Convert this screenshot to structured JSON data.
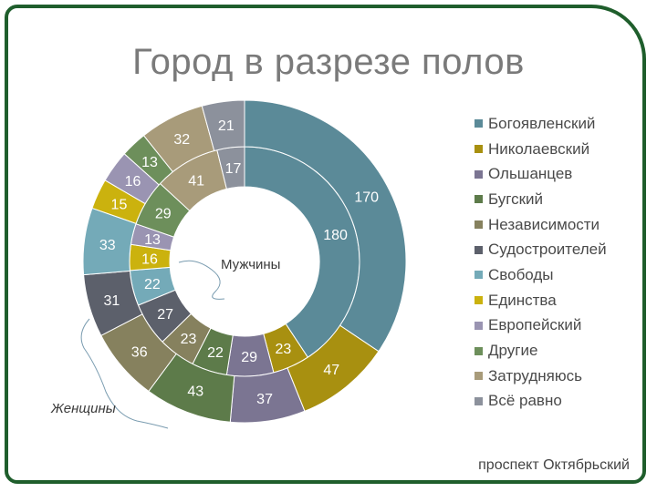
{
  "title": "Город в разрезе полов",
  "footer": "проспект Октябрьский",
  "annotations": {
    "men": "Мужчины",
    "women": "Женщины"
  },
  "chart_data": {
    "type": "pie",
    "subtype": "doughnut",
    "title": "Город в разрезе полов",
    "legend_position": "right",
    "categories": [
      "Богоявленский",
      "Николаевский",
      "Ольшанцев",
      "Бугский",
      "Независимости",
      "Судостроителей",
      "Свободы",
      "Единства",
      "Европейский",
      "Другие",
      "Затрудняюсь",
      "Всё равно"
    ],
    "colors": [
      "#5b8a98",
      "#a89010",
      "#7b7592",
      "#5d7b4a",
      "#86815e",
      "#5c606b",
      "#74aab8",
      "#cbb20e",
      "#9a94b2",
      "#6d8f5b",
      "#a89b7a",
      "#8c919c"
    ],
    "series": [
      {
        "name": "Мужчины",
        "values": [
          180,
          23,
          29,
          22,
          23,
          27,
          22,
          16,
          13,
          29,
          41,
          17
        ]
      },
      {
        "name": "Женщины",
        "values": [
          170,
          47,
          37,
          43,
          36,
          31,
          33,
          15,
          16,
          13,
          32,
          21
        ]
      }
    ]
  }
}
